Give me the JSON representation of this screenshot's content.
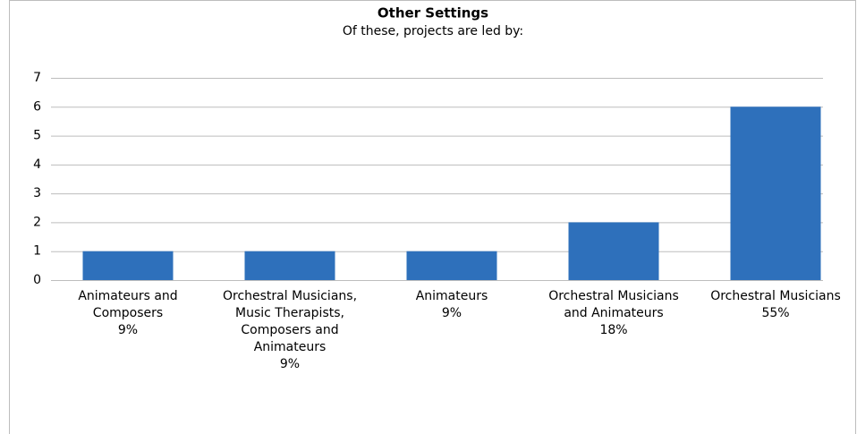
{
  "chart_data": {
    "type": "bar",
    "title": "Other Settings",
    "subtitle": "Of these, projects are led by:",
    "categories": [
      "Animateurs and Composers",
      "Orchestral Musicians, Music Therapists, Composers and Animateurs",
      "Animateurs",
      "Orchestral Musicians and Animateurs",
      "Orchestral Musicians"
    ],
    "category_shares": [
      "9%",
      "9%",
      "9%",
      "18%",
      "55%"
    ],
    "values": [
      1,
      1,
      1,
      2,
      6
    ],
    "color": "#2e70bb",
    "ylim": [
      0,
      7
    ],
    "yticks": [
      0,
      1,
      2,
      3,
      4,
      5,
      6,
      7
    ],
    "grid": true
  }
}
